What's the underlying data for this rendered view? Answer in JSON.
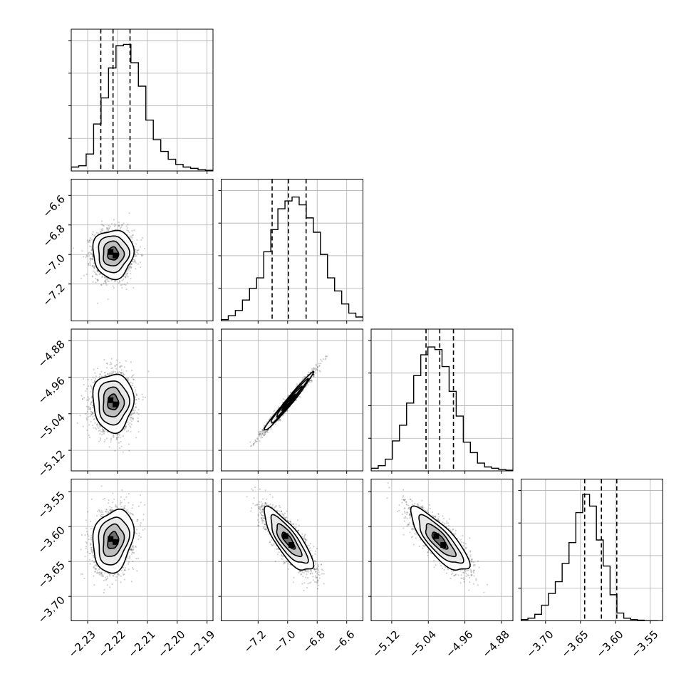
{
  "chart_data": {
    "type": "corner",
    "grid": true,
    "parameters": [
      {
        "range": [
          -2.2355,
          -2.188
        ],
        "ticks": [
          -2.23,
          -2.22,
          -2.21,
          -2.2,
          -2.19
        ],
        "tick_labels": [
          "−2.23",
          "−2.22",
          "−2.21",
          "−2.20",
          "−2.19"
        ],
        "quantiles": [
          -2.2256,
          -2.2215,
          -2.2158
        ],
        "histogram": {
          "start": -2.2355,
          "bin_width": 0.0025,
          "counts": [
            0.03,
            0.04,
            0.13,
            0.36,
            0.56,
            0.79,
            0.96,
            0.97,
            0.83,
            0.65,
            0.39,
            0.24,
            0.15,
            0.09,
            0.05,
            0.03,
            0.02,
            0.01,
            0.005
          ]
        }
      },
      {
        "range": [
          -7.45,
          -6.49
        ],
        "ticks": [
          -7.2,
          -7.0,
          -6.8,
          -6.6
        ],
        "tick_labels": [
          "−7.2",
          "−7.0",
          "−6.8",
          "−6.6"
        ],
        "quantiles": [
          -7.105,
          -6.995,
          -6.875
        ],
        "histogram": {
          "start": -7.45,
          "bin_width": 0.048,
          "counts": [
            0.01,
            0.04,
            0.08,
            0.16,
            0.25,
            0.33,
            0.53,
            0.7,
            0.86,
            0.92,
            0.95,
            0.89,
            0.79,
            0.68,
            0.51,
            0.33,
            0.23,
            0.13,
            0.06,
            0.03
          ]
        }
      },
      {
        "range": [
          -5.165,
          -4.855
        ],
        "ticks": [
          -5.12,
          -5.04,
          -4.96,
          -4.88
        ],
        "tick_labels": [
          "−5.12",
          "−5.04",
          "−4.96",
          "−4.88"
        ],
        "quantiles": [
          -5.045,
          -5.015,
          -4.985
        ],
        "histogram": {
          "start": -5.165,
          "bin_width": 0.0155,
          "counts": [
            0.02,
            0.04,
            0.09,
            0.23,
            0.35,
            0.52,
            0.73,
            0.89,
            0.95,
            0.93,
            0.8,
            0.61,
            0.42,
            0.22,
            0.14,
            0.06,
            0.03,
            0.02,
            0.01,
            0.005
          ]
        }
      },
      {
        "range": [
          -3.735,
          -3.532
        ],
        "ticks": [
          -3.7,
          -3.65,
          -3.6,
          -3.55
        ],
        "tick_labels": [
          "−3.70",
          "−3.65",
          "−3.60",
          "−3.55"
        ],
        "quantiles": [
          -3.644,
          -3.62,
          -3.598
        ],
        "histogram": {
          "start": -3.735,
          "bin_width": 0.0098,
          "counts": [
            0.01,
            0.02,
            0.05,
            0.12,
            0.21,
            0.3,
            0.44,
            0.6,
            0.83,
            0.97,
            0.88,
            0.62,
            0.42,
            0.2,
            0.06,
            0.02,
            0.01,
            0.005,
            0.0,
            0.0
          ]
        }
      }
    ],
    "pairs": [
      {
        "row": 1,
        "col": 0,
        "center": [
          -2.2215,
          -6.995
        ],
        "sd": [
          0.0033,
          0.08
        ],
        "rho": 0.0
      },
      {
        "row": 2,
        "col": 0,
        "center": [
          -2.2215,
          -5.015
        ],
        "sd": [
          0.0033,
          0.031
        ],
        "rho": 0.0
      },
      {
        "row": 2,
        "col": 1,
        "center": [
          -6.995,
          -5.015
        ],
        "sd": [
          0.08,
          0.031
        ],
        "rho": 0.985
      },
      {
        "row": 3,
        "col": 0,
        "center": [
          -2.2215,
          -3.62
        ],
        "sd": [
          0.0033,
          0.022
        ],
        "rho": 0.2
      },
      {
        "row": 3,
        "col": 1,
        "center": [
          -6.995,
          -3.62
        ],
        "sd": [
          0.08,
          0.022
        ],
        "rho": -0.8
      },
      {
        "row": 3,
        "col": 2,
        "center": [
          -5.015,
          -3.62
        ],
        "sd": [
          0.031,
          0.022
        ],
        "rho": -0.8
      }
    ],
    "colors": {
      "line": "#000000",
      "points": "#000000",
      "grid": "#b0b0b0",
      "frame": "#000000"
    }
  }
}
